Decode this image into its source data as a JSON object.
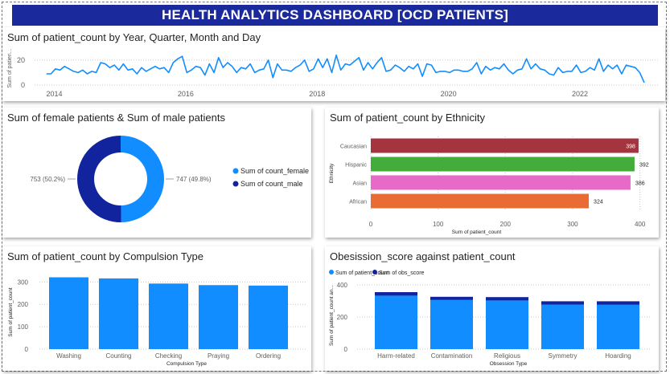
{
  "header": {
    "title": "HEALTH ANALYTICS DASHBOARD [OCD PATIENTS]"
  },
  "colors": {
    "banner": "#1a2a9c",
    "line": "#118dff",
    "dark_blue": "#12239e",
    "light_blue": "#118dff"
  },
  "chart_data": [
    {
      "id": "timeline",
      "type": "line",
      "title": "Sum of patient_count by Year, Quarter, Month and Day",
      "ylabel": "Sum of patien...",
      "ylim": [
        0,
        27
      ],
      "yticks": [
        0,
        20
      ],
      "xlim": [
        2013.7,
        2023.2
      ],
      "xticks": [
        "2014",
        "2016",
        "2018",
        "2020",
        "2022"
      ],
      "xtick_values": [
        2014,
        2016,
        2018,
        2020,
        2022
      ],
      "values": [
        9,
        9,
        13,
        12,
        15,
        13,
        11,
        10,
        12,
        9,
        11,
        10,
        18,
        17,
        14,
        16,
        12,
        17,
        12,
        13,
        9,
        14,
        11,
        13,
        15,
        13,
        14,
        10,
        18,
        21,
        23,
        10,
        12,
        15,
        14,
        8,
        17,
        10,
        22,
        14,
        18,
        15,
        10,
        14,
        13,
        17,
        10,
        12,
        13,
        20,
        6,
        17,
        12,
        12,
        11,
        14,
        16,
        20,
        11,
        13,
        21,
        14,
        21,
        10,
        24,
        12,
        17,
        16,
        19,
        22,
        12,
        18,
        13,
        18,
        22,
        11,
        12,
        16,
        14,
        11,
        15,
        13,
        17,
        7,
        17,
        16,
        10,
        11,
        11,
        10,
        12,
        12,
        11,
        11,
        13,
        18,
        9,
        15,
        12,
        14,
        13,
        17,
        12,
        9,
        12,
        13,
        21,
        13,
        17,
        13,
        12,
        9,
        8,
        14,
        10,
        11,
        11,
        16,
        10,
        11,
        14,
        12,
        21,
        11,
        16,
        13,
        16,
        9,
        16,
        15,
        14,
        10,
        2
      ],
      "grid": true
    },
    {
      "id": "gender",
      "type": "pie",
      "title": "Sum of female patients & Sum of male patients",
      "labels": [
        "Sum of count_female",
        "Sum of count_male"
      ],
      "values": [
        747,
        753
      ],
      "data_labels": [
        "747 (49.8%)",
        "753 (50.2%)"
      ],
      "colors": [
        "#118dff",
        "#12239e"
      ],
      "legend": "right"
    },
    {
      "id": "ethnicity",
      "type": "bar",
      "orientation": "horizontal",
      "title": "Sum of patient_count by Ethnicity",
      "ylabel": "Ethnicity",
      "xlabel": "Sum of patient_count",
      "categories": [
        "Caucasian",
        "Hispanic",
        "Asian",
        "African"
      ],
      "values": [
        398,
        392,
        386,
        324
      ],
      "colors": [
        "#a4353f",
        "#43ac3b",
        "#e76ac8",
        "#e86c34"
      ],
      "xlim": [
        0,
        410
      ],
      "xticks": [
        0,
        100,
        200,
        300,
        400
      ],
      "grid": true
    },
    {
      "id": "compulsion",
      "type": "bar",
      "title": "Sum of patient_count by Compulsion Type",
      "ylabel": "Sum of patient_count",
      "xlabel": "Compulsion Type",
      "categories": [
        "Washing",
        "Counting",
        "Checking",
        "Praying",
        "Ordering"
      ],
      "values": [
        321,
        316,
        293,
        286,
        284
      ],
      "colors": [
        "#118dff"
      ],
      "ylim": [
        0,
        330
      ],
      "yticks": [
        0,
        100,
        200,
        300
      ],
      "grid": true
    },
    {
      "id": "obsession",
      "type": "bar",
      "stacked": true,
      "title": "Obesission_score against patient_count",
      "ylabel": "Sum of patient_count an...",
      "xlabel": "Obsession Type",
      "categories": [
        "Harm-related",
        "Contamination",
        "Religious",
        "Symmetry",
        "Hoarding"
      ],
      "series": [
        {
          "name": "Sum of patient_count",
          "values": [
            333,
            306,
            303,
            277,
            276
          ],
          "color": "#118dff"
        },
        {
          "name": "Sum of obs_score",
          "values": [
            22,
            20,
            21,
            21,
            22
          ],
          "color": "#12239e"
        }
      ],
      "legend": "top-left",
      "ylim": [
        0,
        420
      ],
      "yticks": [
        0,
        200,
        400
      ],
      "grid": true
    }
  ]
}
